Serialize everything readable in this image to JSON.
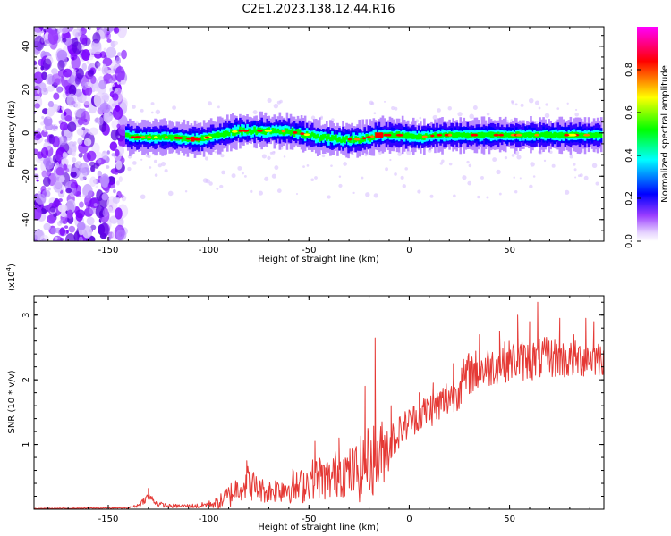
{
  "title": "C2E1.2023.138.12.44.R16",
  "colors": {
    "snr_line": "#e53935",
    "axis": "#000000"
  },
  "chart_data": [
    {
      "type": "heatmap",
      "xlabel": "Height of straight line (km)",
      "ylabel": "Frequency (Hz)",
      "xlim": [
        -187,
        97
      ],
      "ylim": [
        -50,
        49
      ],
      "xticks": [
        -150,
        -100,
        -50,
        0,
        50
      ],
      "yticks": [
        -40,
        -20,
        0,
        20,
        40
      ],
      "colorbar": {
        "label": "Normalized spectral amplitude",
        "ticks": [
          0.0,
          0.2,
          0.4,
          0.6,
          0.8
        ],
        "range": [
          0,
          1
        ],
        "colormap": "rainbow (white-violet-blue-cyan-green-yellow-red-magenta)"
      },
      "features": {
        "noise_region_x": [
          -187,
          -142
        ],
        "signal_band_x": [
          -142,
          97
        ],
        "signal_center_frequency_hz": [
          [
            -140,
            -2
          ],
          [
            -120,
            -2
          ],
          [
            -105,
            -3
          ],
          [
            -95,
            -1
          ],
          [
            -85,
            1
          ],
          [
            -75,
            1
          ],
          [
            -65,
            1
          ],
          [
            -55,
            0
          ],
          [
            -45,
            -2
          ],
          [
            -35,
            -3
          ],
          [
            -25,
            -3
          ],
          [
            -15,
            -1
          ],
          [
            -5,
            -1
          ],
          [
            5,
            -2
          ],
          [
            15,
            -1
          ],
          [
            25,
            -1
          ],
          [
            35,
            -1
          ],
          [
            45,
            -1
          ],
          [
            55,
            -1
          ],
          [
            65,
            -1
          ],
          [
            75,
            -1
          ],
          [
            85,
            -1
          ],
          [
            95,
            -1
          ]
        ]
      }
    },
    {
      "type": "line",
      "xlabel": "Height of straight line (km)",
      "ylabel": "SNR (10 * v/v)",
      "y_multiplier": "(x10^4)",
      "y_multiplier_base": "(x10",
      "y_multiplier_exp": "4",
      "y_multiplier_close": ")",
      "xlim": [
        -187,
        97
      ],
      "ylim": [
        0,
        3.3
      ],
      "xticks": [
        -150,
        -100,
        -50,
        0,
        50
      ],
      "yticks": [
        1,
        2,
        3
      ],
      "series": [
        {
          "profile_x": [
            -187,
            -140,
            -135,
            -130,
            -125,
            -120,
            -110,
            -105,
            -100,
            -95,
            -90,
            -85,
            -80,
            -75,
            -70,
            -60,
            -55,
            -50,
            -45,
            -40,
            -35,
            -30,
            -25,
            -20,
            -15,
            -10,
            -5,
            0,
            5,
            10,
            15,
            20,
            25,
            30,
            40,
            50,
            60,
            70,
            80,
            90,
            97
          ],
          "profile_mean": [
            0.01,
            0.02,
            0.06,
            0.2,
            0.08,
            0.05,
            0.05,
            0.05,
            0.08,
            0.1,
            0.2,
            0.35,
            0.42,
            0.3,
            0.28,
            0.35,
            0.32,
            0.45,
            0.5,
            0.45,
            0.6,
            0.55,
            0.6,
            0.75,
            0.8,
            1.0,
            1.2,
            1.35,
            1.45,
            1.55,
            1.6,
            1.75,
            1.9,
            2.1,
            2.2,
            2.3,
            2.3,
            2.35,
            2.3,
            2.35,
            2.35
          ],
          "profile_spread": [
            0.005,
            0.01,
            0.03,
            0.07,
            0.04,
            0.03,
            0.03,
            0.04,
            0.05,
            0.1,
            0.2,
            0.22,
            0.28,
            0.2,
            0.18,
            0.25,
            0.28,
            0.3,
            0.35,
            0.35,
            0.4,
            0.4,
            0.5,
            0.55,
            0.6,
            0.4,
            0.25,
            0.25,
            0.25,
            0.28,
            0.3,
            0.32,
            0.35,
            0.35,
            0.32,
            0.32,
            0.32,
            0.32,
            0.3,
            0.3,
            0.3
          ],
          "peaks": [
            [
              -130,
              0.32
            ],
            [
              -81,
              0.75
            ],
            [
              -58,
              0.62
            ],
            [
              -47,
              1.05
            ],
            [
              -35,
              1.1
            ],
            [
              -22,
              1.9
            ],
            [
              -17,
              2.65
            ],
            [
              -12,
              1.0
            ],
            [
              -9,
              1.6
            ],
            [
              5,
              1.8
            ],
            [
              12,
              1.95
            ],
            [
              22,
              2.25
            ],
            [
              35,
              2.7
            ],
            [
              45,
              2.75
            ],
            [
              54,
              3.0
            ],
            [
              60,
              2.9
            ],
            [
              64,
              3.2
            ],
            [
              75,
              2.95
            ],
            [
              82,
              2.7
            ],
            [
              88,
              2.95
            ],
            [
              92,
              2.9
            ]
          ]
        }
      ]
    }
  ]
}
